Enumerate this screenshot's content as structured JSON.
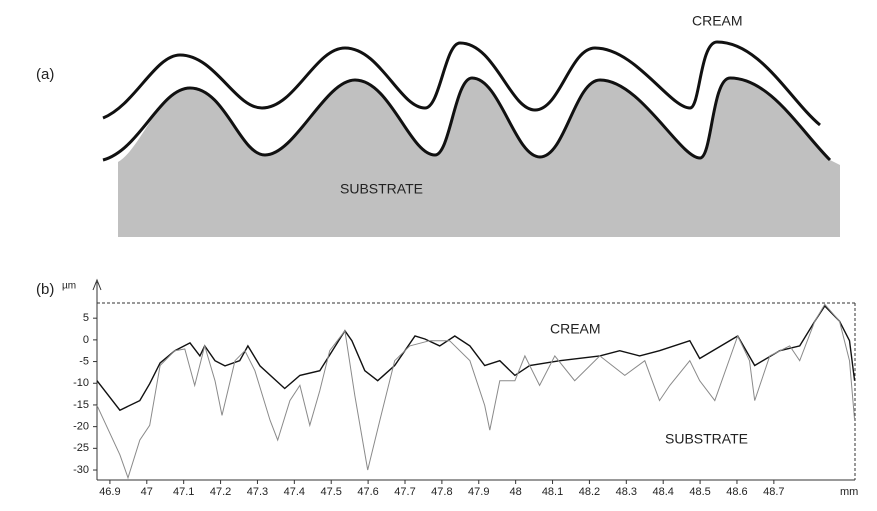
{
  "panel_a": {
    "label": "(a)",
    "cream": "CREAM",
    "substrate": "SUBSTRATE"
  },
  "chart_data": {
    "type": "line",
    "panel_label": "(b)",
    "x_label": "mm",
    "y_label": "µm",
    "xlim": [
      46.865,
      48.92
    ],
    "ylim": [
      -32.3,
      8.5
    ],
    "xticks": [
      46.9,
      47,
      47.1,
      47.2,
      47.3,
      47.4,
      47.5,
      47.6,
      47.7,
      47.8,
      47.9,
      48,
      48.1,
      48.2,
      48.3,
      48.4,
      48.5,
      48.6,
      48.7
    ],
    "yticks": [
      5,
      0,
      -5,
      -10,
      -15,
      -20,
      -25,
      -30
    ],
    "series": [
      {
        "name": "CREAM",
        "color": "#111111",
        "x": [
          46.865,
          46.927,
          46.981,
          47.008,
          47.036,
          47.076,
          47.117,
          47.144,
          47.157,
          47.185,
          47.212,
          47.252,
          47.274,
          47.307,
          47.374,
          47.415,
          47.469,
          47.537,
          47.556,
          47.591,
          47.626,
          47.672,
          47.727,
          47.754,
          47.794,
          47.835,
          47.876,
          47.916,
          47.957,
          47.998,
          48.038,
          48.12,
          48.228,
          48.282,
          48.336,
          48.39,
          48.472,
          48.499,
          48.602,
          48.648,
          48.716,
          48.77,
          48.811,
          48.838,
          48.878,
          48.905,
          48.919
        ],
        "values": [
          -9.4,
          -16.2,
          -14.0,
          -10.1,
          -5.3,
          -2.5,
          -0.7,
          -3.7,
          -1.4,
          -4.8,
          -6.0,
          -4.8,
          -1.4,
          -6.0,
          -11.2,
          -8.2,
          -7.1,
          2.1,
          -0.2,
          -7.1,
          -9.4,
          -5.9,
          0.9,
          0.2,
          -1.4,
          0.9,
          -1.4,
          -5.9,
          -4.8,
          -8.2,
          -5.9,
          -4.8,
          -3.7,
          -2.5,
          -3.7,
          -2.5,
          -0.2,
          -4.3,
          0.9,
          -5.9,
          -2.5,
          -1.4,
          4.3,
          7.8,
          4.3,
          -0.2,
          -9.4
        ]
      },
      {
        "name": "SUBSTRATE",
        "color": "#8a8a8a",
        "x": [
          46.865,
          46.927,
          46.949,
          46.981,
          47.008,
          47.036,
          47.076,
          47.103,
          47.13,
          47.157,
          47.185,
          47.204,
          47.239,
          47.266,
          47.293,
          47.334,
          47.355,
          47.388,
          47.415,
          47.442,
          47.469,
          47.496,
          47.537,
          47.564,
          47.599,
          47.632,
          47.672,
          47.713,
          47.767,
          47.821,
          47.876,
          47.916,
          47.93,
          47.957,
          47.998,
          48.025,
          48.065,
          48.106,
          48.16,
          48.228,
          48.296,
          48.35,
          48.39,
          48.418,
          48.472,
          48.499,
          48.54,
          48.602,
          48.634,
          48.648,
          48.689,
          48.743,
          48.77,
          48.811,
          48.838,
          48.878,
          48.905,
          48.919
        ],
        "values": [
          -15.1,
          -26.5,
          -31.8,
          -23.1,
          -19.7,
          -5.9,
          -2.5,
          -2.1,
          -10.5,
          -1.4,
          -9.4,
          -17.4,
          -4.8,
          -2.5,
          -7.1,
          -18.5,
          -23.1,
          -14.0,
          -10.5,
          -19.7,
          -11.7,
          -2.5,
          2.1,
          -12.8,
          -30.0,
          -18.5,
          -4.8,
          -1.4,
          -0.2,
          -0.2,
          -4.8,
          -15.1,
          -20.8,
          -9.4,
          -9.4,
          -3.7,
          -10.5,
          -3.7,
          -9.4,
          -3.7,
          -8.2,
          -4.8,
          -14.0,
          -10.5,
          -4.8,
          -9.4,
          -14.0,
          0.9,
          -4.8,
          -14.0,
          -3.7,
          -1.4,
          -4.8,
          4.3,
          8.2,
          4.3,
          -4.8,
          -18.5
        ]
      }
    ]
  }
}
